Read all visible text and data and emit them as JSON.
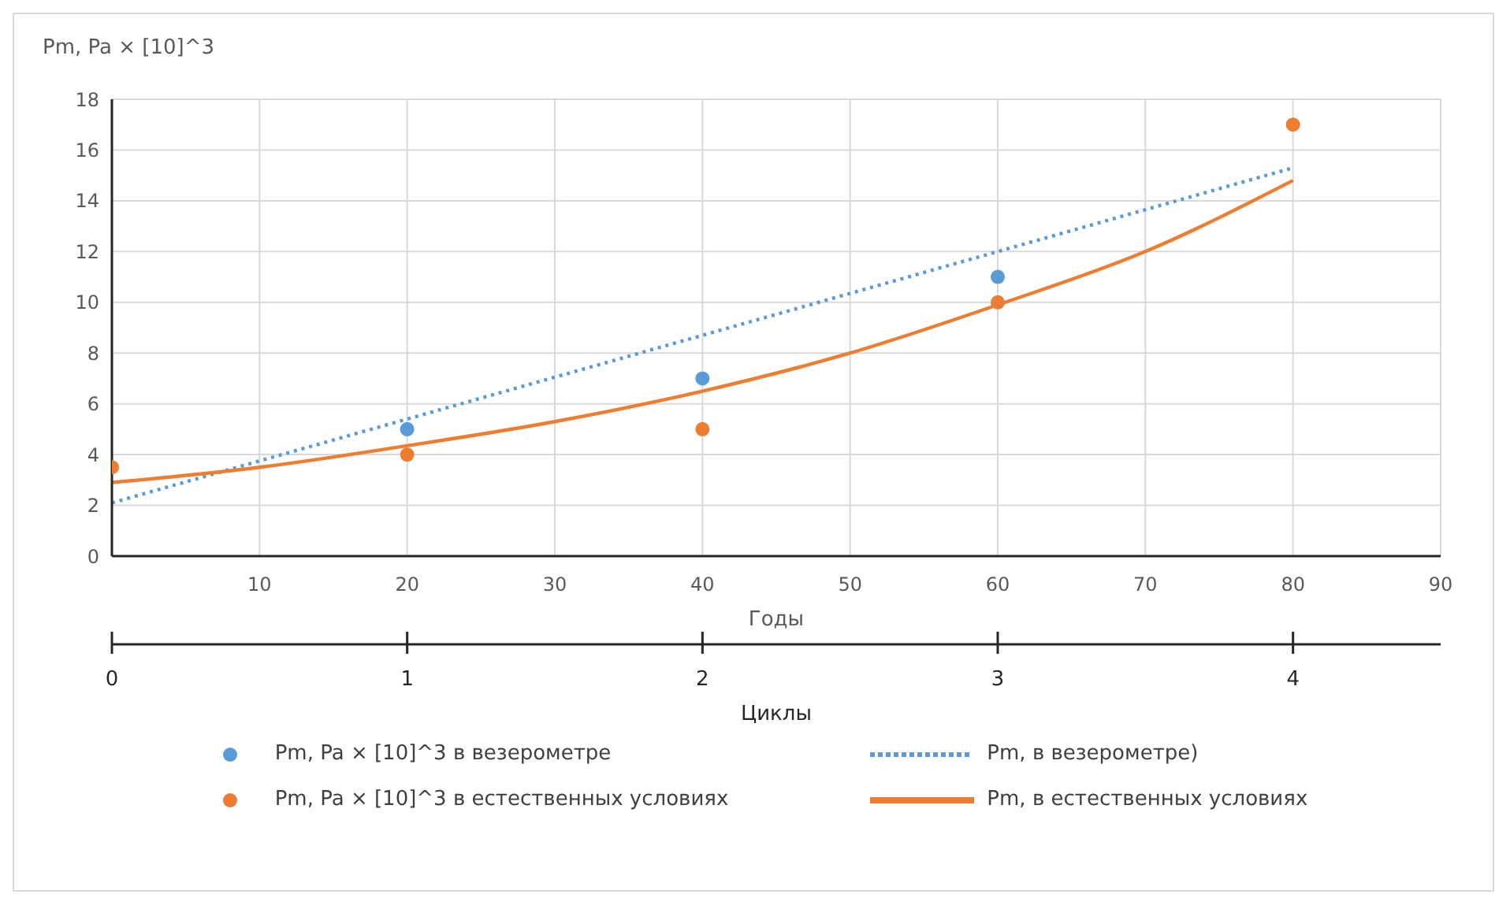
{
  "chart_data": {
    "type": "scatter",
    "ylabel": "Pm, Pa × [10]^3",
    "xlabel": "Годы",
    "x2label": "Циклы",
    "xlim": [
      0,
      90
    ],
    "xticks": [
      10,
      20,
      30,
      40,
      50,
      60,
      70,
      80,
      90
    ],
    "x2lim": [
      0,
      4.5
    ],
    "x2ticks": [
      0,
      1,
      2,
      3,
      4
    ],
    "ylim": [
      0,
      18
    ],
    "yticks": [
      0,
      2,
      4,
      6,
      8,
      10,
      12,
      14,
      16,
      18
    ],
    "grid": true,
    "legend": "bottom",
    "marker": "circle",
    "series": [
      {
        "name": "Pm, Pa × [10]^3 в везерометре",
        "color": "#5b9bd5",
        "x": [
          20,
          40,
          60
        ],
        "values": [
          5,
          7,
          11
        ]
      },
      {
        "name": "Pm, Pa × [10]^3 в естественных условиях",
        "color": "#ed7d31",
        "x": [
          0,
          20,
          40,
          60,
          80
        ],
        "values": [
          3.5,
          4,
          5,
          10,
          17
        ]
      },
      {
        "name": "Pm,      в везерометре)",
        "type": "line",
        "marker": "none",
        "line_style": "dotted",
        "color": "#5b9bd5",
        "x": [
          0,
          80
        ],
        "values": [
          2.1,
          15.3
        ]
      },
      {
        "name": "Pm, в естественных условиях",
        "type": "line",
        "marker": "none",
        "line_style": "solid",
        "color": "#ed7d31",
        "x": [
          0,
          10,
          20,
          30,
          40,
          50,
          60,
          70,
          80
        ],
        "values": [
          2.9,
          3.5,
          4.35,
          5.3,
          6.5,
          8.0,
          9.9,
          12.0,
          14.8
        ]
      }
    ]
  }
}
